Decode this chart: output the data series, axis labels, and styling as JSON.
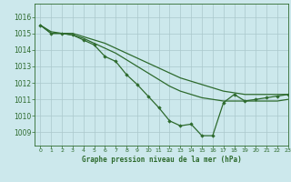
{
  "title": "Graphe pression niveau de la mer (hPa)",
  "bg_color": "#cce8ec",
  "grid_color": "#aac8cc",
  "line_color": "#2d6a2d",
  "marker_color": "#2d6a2d",
  "xlim": [
    -0.5,
    23
  ],
  "ylim": [
    1008.2,
    1016.8
  ],
  "yticks": [
    1009,
    1010,
    1011,
    1012,
    1013,
    1014,
    1015,
    1016
  ],
  "xticks": [
    0,
    1,
    2,
    3,
    4,
    5,
    6,
    7,
    8,
    9,
    10,
    11,
    12,
    13,
    14,
    15,
    16,
    17,
    18,
    19,
    20,
    21,
    22,
    23
  ],
  "series": [
    {
      "x": [
        0,
        1,
        2,
        3,
        4,
        5,
        6,
        7,
        8,
        9,
        10,
        11,
        12,
        13,
        14,
        15,
        16,
        17,
        18,
        19,
        20,
        21,
        22,
        23
      ],
      "y": [
        1015.5,
        1015.1,
        1015.0,
        1015.0,
        1014.8,
        1014.6,
        1014.4,
        1014.1,
        1013.8,
        1013.5,
        1013.2,
        1012.9,
        1012.6,
        1012.3,
        1012.1,
        1011.9,
        1011.7,
        1011.5,
        1011.4,
        1011.3,
        1011.3,
        1011.3,
        1011.3,
        1011.3
      ],
      "marker": false,
      "lw": 0.9
    },
    {
      "x": [
        0,
        1,
        2,
        3,
        4,
        5,
        6,
        7,
        8,
        9,
        10,
        11,
        12,
        13,
        14,
        15,
        16,
        17,
        18,
        19,
        20,
        21,
        22,
        23
      ],
      "y": [
        1015.5,
        1015.0,
        1015.0,
        1014.9,
        1014.7,
        1014.4,
        1014.1,
        1013.8,
        1013.4,
        1013.0,
        1012.6,
        1012.2,
        1011.8,
        1011.5,
        1011.3,
        1011.1,
        1011.0,
        1010.9,
        1010.9,
        1010.9,
        1010.9,
        1010.9,
        1010.9,
        1011.0
      ],
      "marker": false,
      "lw": 0.9
    },
    {
      "x": [
        0,
        1,
        2,
        3,
        4,
        5,
        6,
        7,
        8,
        9,
        10,
        11,
        12,
        13,
        14,
        15,
        16,
        17,
        18,
        19,
        20,
        21,
        22,
        23
      ],
      "y": [
        1015.5,
        1015.0,
        1015.0,
        1014.9,
        1014.6,
        1014.3,
        1013.6,
        1013.3,
        1012.5,
        1011.9,
        1011.2,
        1010.5,
        1009.7,
        1009.4,
        1009.5,
        1008.8,
        1008.8,
        1010.8,
        1011.3,
        1010.9,
        1011.0,
        1011.1,
        1011.2,
        1011.3
      ],
      "marker": true,
      "lw": 0.9
    }
  ]
}
